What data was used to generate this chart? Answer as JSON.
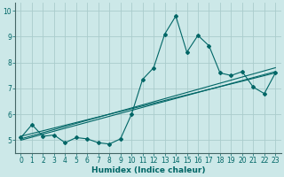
{
  "title": "",
  "xlabel": "Humidex (Indice chaleur)",
  "ylabel": "",
  "bg_color": "#cce8e8",
  "grid_color": "#aacccc",
  "line_color": "#006666",
  "xlim": [
    -0.5,
    23.5
  ],
  "ylim": [
    4.5,
    10.3
  ],
  "xticks": [
    0,
    1,
    2,
    3,
    4,
    5,
    6,
    7,
    8,
    9,
    10,
    11,
    12,
    13,
    14,
    15,
    16,
    17,
    18,
    19,
    20,
    21,
    22,
    23
  ],
  "yticks": [
    5,
    6,
    7,
    8,
    9,
    10
  ],
  "data_x": [
    0,
    1,
    2,
    3,
    4,
    5,
    6,
    7,
    8,
    9,
    10,
    11,
    12,
    13,
    14,
    15,
    16,
    17,
    18,
    19,
    20,
    21,
    22,
    23
  ],
  "data_y": [
    5.1,
    5.6,
    5.15,
    5.2,
    4.9,
    5.1,
    5.05,
    4.9,
    4.85,
    5.05,
    6.0,
    7.35,
    7.8,
    9.1,
    9.8,
    8.4,
    9.05,
    8.65,
    7.6,
    7.5,
    7.65,
    7.05,
    6.8,
    7.6
  ],
  "trend1_x": [
    0,
    23
  ],
  "trend1_y": [
    5.05,
    7.8
  ],
  "trend2_x": [
    0,
    23
  ],
  "trend2_y": [
    5.15,
    7.6
  ],
  "trend3_x": [
    0,
    23
  ],
  "trend3_y": [
    5.0,
    7.65
  ]
}
